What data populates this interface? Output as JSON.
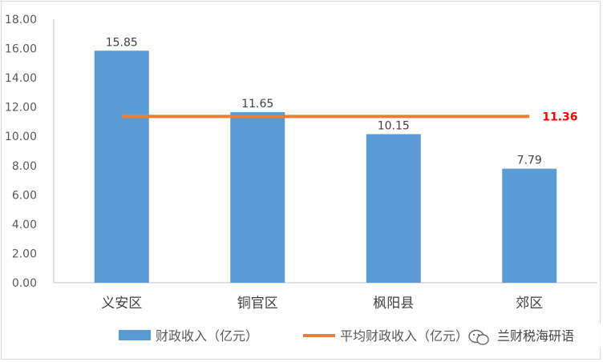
{
  "chart_data": {
    "type": "bar",
    "categories": [
      "义安区",
      "铜官区",
      "枫阳县",
      "郊区"
    ],
    "series": [
      {
        "name": "财政收入（亿元）",
        "type": "bar",
        "values": [
          15.85,
          11.65,
          10.15,
          7.79
        ],
        "color": "#5b9bd5"
      },
      {
        "name": "平均财政收入（亿元）",
        "type": "line",
        "value": 11.36,
        "color": "#ed7d31"
      }
    ],
    "data_labels": [
      "15.85",
      "11.65",
      "10.15",
      "7.79"
    ],
    "average_label": "11.36",
    "average_label_color": "#ff0000",
    "ylim": [
      0,
      18
    ],
    "yticks": [
      "0.00",
      "2.00",
      "4.00",
      "6.00",
      "8.00",
      "10.00",
      "12.00",
      "14.00",
      "16.00",
      "18.00"
    ],
    "grid": false,
    "legend_position": "bottom"
  },
  "watermark": "兰财税海研语",
  "watermark_icon": "wechat-icon"
}
